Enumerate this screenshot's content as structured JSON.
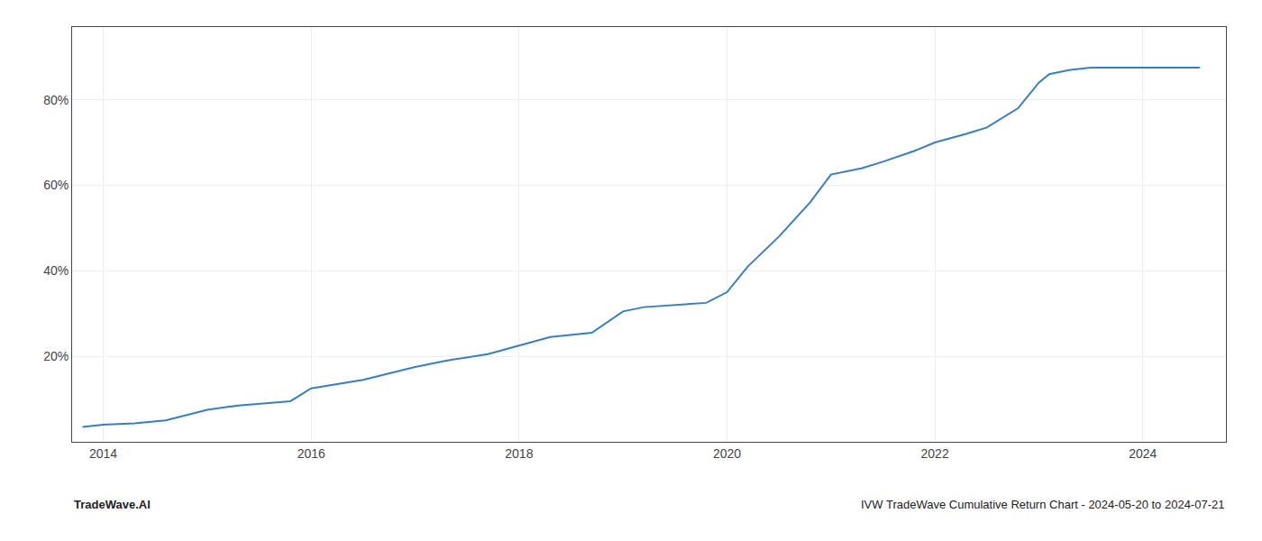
{
  "chart_data": {
    "type": "line",
    "title": "IVW TradeWave Cumulative Return Chart - 2024-05-20 to 2024-07-21",
    "annotations": [
      "TradeWave.AI"
    ],
    "x": [
      2013.8,
      2014.0,
      2014.3,
      2014.6,
      2015.0,
      2015.3,
      2015.8,
      2016.0,
      2016.5,
      2017.0,
      2017.3,
      2017.7,
      2018.0,
      2018.3,
      2018.7,
      2019.0,
      2019.2,
      2019.5,
      2019.8,
      2020.0,
      2020.2,
      2020.5,
      2020.8,
      2021.0,
      2021.3,
      2021.5,
      2021.8,
      2022.0,
      2022.3,
      2022.5,
      2022.8,
      2023.0,
      2023.1,
      2023.3,
      2023.5,
      2023.7,
      2024.0,
      2024.3,
      2024.55
    ],
    "values": [
      3.5,
      4.0,
      4.3,
      5.0,
      7.5,
      8.5,
      9.5,
      12.5,
      14.5,
      17.5,
      19.0,
      20.5,
      22.5,
      24.5,
      25.5,
      30.5,
      31.5,
      32.0,
      32.5,
      35.0,
      41.0,
      48.0,
      56.0,
      62.5,
      64.0,
      65.5,
      68.0,
      70.0,
      72.0,
      73.5,
      78.0,
      84.0,
      86.0,
      87.0,
      87.5,
      87.5,
      87.5,
      87.5,
      87.5
    ],
    "color": "#3a7ebf",
    "xlim": [
      2013.7,
      2024.8
    ],
    "ylim": [
      0,
      97
    ],
    "xticks": [
      2014,
      2016,
      2018,
      2020,
      2022,
      2024
    ],
    "yticks": [
      {
        "value": 20,
        "label": "20%"
      },
      {
        "value": 40,
        "label": "40%"
      },
      {
        "value": 60,
        "label": "60%"
      },
      {
        "value": 80,
        "label": "80%"
      }
    ],
    "grid": true
  }
}
